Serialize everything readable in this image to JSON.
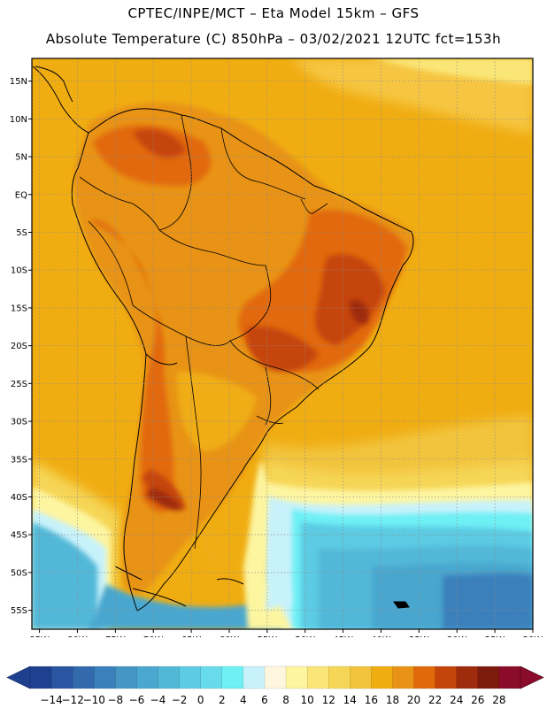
{
  "header": {
    "line1": "CPTEC/INPE/MCT –  Eta Model 15km – GFS",
    "line2": "Absolute Temperature (C) 850hPa – 03/02/2021 12UTC fct=153h"
  },
  "map": {
    "lat_labels": [
      "15N",
      "10N",
      "5N",
      "EQ",
      "5S",
      "10S",
      "15S",
      "20S",
      "25S",
      "30S",
      "35S",
      "40S",
      "45S",
      "50S",
      "55S"
    ],
    "lon_labels": [
      "85W",
      "80W",
      "75W",
      "70W",
      "65W",
      "60W",
      "55W",
      "50W",
      "45W",
      "40W",
      "35W",
      "30W",
      "25W",
      "20W"
    ],
    "lat_range": [
      18,
      -57.5
    ],
    "lon_range": [
      -86,
      -20
    ],
    "grid": true,
    "grid_style": "dotted"
  },
  "colorbar": {
    "labels": [
      "-14",
      "-12",
      "-10",
      "-8",
      "-6",
      "-4",
      "-2",
      "0",
      "2",
      "4",
      "6",
      "8",
      "10",
      "12",
      "14",
      "16",
      "18",
      "20",
      "22",
      "24",
      "26",
      "28"
    ],
    "colors": [
      "#1f3f8f",
      "#2a55a0",
      "#336aae",
      "#3b80bb",
      "#4595c5",
      "#4aa7cf",
      "#52b8d8",
      "#5ccbe3",
      "#68dbeb",
      "#6ef0f5",
      "#c8f2fb",
      "#fff6e0",
      "#fdf5a0",
      "#fae677",
      "#f6d657",
      "#f2c43d",
      "#f0ad12",
      "#e89315",
      "#e2690a",
      "#c5440a",
      "#9e2b0c",
      "#7c1a0b",
      "#8a0b2a"
    ]
  }
}
